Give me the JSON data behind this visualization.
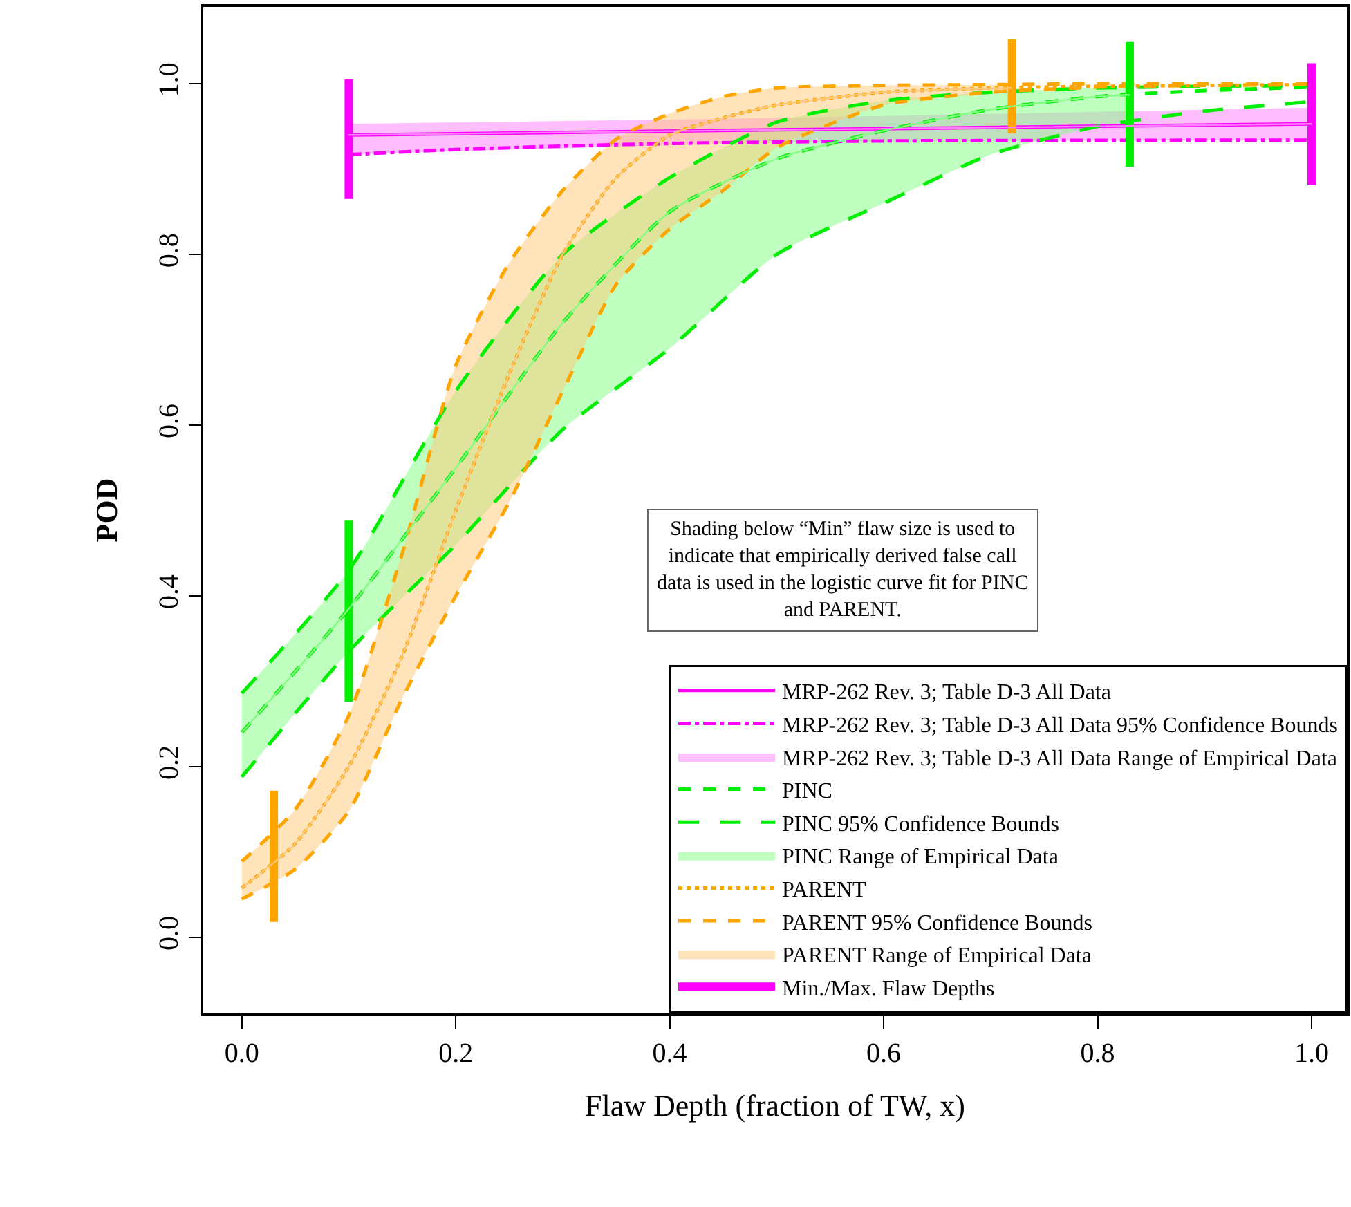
{
  "chart_data": {
    "type": "line",
    "xlabel": "Flaw Depth (fraction of TW, x)",
    "ylabel": "POD",
    "xlim": [
      -0.036,
      1.033
    ],
    "ylim": [
      -0.089,
      1.09
    ],
    "xticks": [
      {
        "value": 0,
        "label": "0.0"
      },
      {
        "value": 0.2,
        "label": "0.2"
      },
      {
        "value": 0.4,
        "label": "0.4"
      },
      {
        "value": 0.6,
        "label": "0.6"
      },
      {
        "value": 0.8,
        "label": "0.8"
      },
      {
        "value": 1,
        "label": "1.0"
      }
    ],
    "yticks": [
      {
        "value": 0,
        "label": "0.0"
      },
      {
        "value": 0.2,
        "label": "0.2"
      },
      {
        "value": 0.4,
        "label": "0.4"
      },
      {
        "value": 0.6,
        "label": "0.6"
      },
      {
        "value": 0.8,
        "label": "0.8"
      },
      {
        "value": 1,
        "label": "1.0"
      }
    ],
    "grid": false,
    "legend": "bottom right",
    "annotations": [
      "Shading below “Min” flaw size is used to\nindicate that empirically derived false call\ndata is used in the logistic curve fit for PINC\nand PARENT."
    ],
    "series": [
      {
        "name": "MRP-262 Rev. 3; Table D-3 All Data",
        "color": "#ff00ff",
        "line_style": "solid",
        "x": [
          0.1,
          0.5,
          1.0
        ],
        "values": [
          0.94,
          0.946,
          0.953
        ]
      },
      {
        "name": "MRP-262 Rev. 3; Table D-3 All Data 95% Confidence Bounds",
        "color": "#ff00ff",
        "line_style": "dashdot",
        "x": [
          0.1,
          0.2,
          0.3,
          0.4,
          0.6,
          1.0
        ],
        "values": [
          0.917,
          0.923,
          0.927,
          0.93,
          0.933,
          0.934
        ]
      },
      {
        "name": "MRP-262 Rev. 3; Table D-3 All Data Range of Empirical Data",
        "color": "#ff80ff",
        "x": [
          0.1,
          0.5,
          1.0
        ],
        "values": [
          0.94,
          0.946,
          0.953
        ],
        "lower": [
          0.917,
          0.931,
          0.934
        ],
        "upper": [
          0.953,
          0.96,
          0.972
        ]
      },
      {
        "name": "PINC",
        "color": "#00ee00",
        "line_style": "dashed",
        "x": [
          0,
          0.1,
          0.2,
          0.3,
          0.4,
          0.5,
          0.6,
          0.7,
          0.8,
          0.9,
          1.0
        ],
        "values": [
          0.24,
          0.385,
          0.55,
          0.72,
          0.85,
          0.912,
          0.945,
          0.97,
          0.985,
          0.992,
          0.996
        ]
      },
      {
        "name": "PINC 95% Confidence Bounds",
        "color": "#00ee00",
        "line_style": "longdash",
        "x": [
          0,
          0.1,
          0.2,
          0.3,
          0.4,
          0.5,
          0.6,
          0.7,
          0.8,
          0.9,
          1.0,
          null,
          0,
          0.1,
          0.2,
          0.3,
          0.4,
          0.5,
          0.6,
          0.7,
          0.8,
          0.9,
          1.0
        ],
        "values": [
          0.286,
          0.43,
          0.64,
          0.8,
          0.89,
          0.955,
          0.98,
          0.99,
          0.995,
          0.997,
          0.998,
          null,
          0.188,
          0.335,
          0.46,
          0.595,
          0.69,
          0.8,
          0.86,
          0.917,
          0.95,
          0.968,
          0.979
        ]
      },
      {
        "name": "PINC Range of Empirical Data",
        "color": "#80ff80",
        "x": [
          0,
          0.1,
          0.2,
          0.3,
          0.4,
          0.5,
          0.6,
          0.7,
          0.8,
          0.83
        ],
        "values": [
          0.24,
          0.385,
          0.55,
          0.72,
          0.85,
          0.912,
          0.945,
          0.97,
          0.985,
          0.987
        ],
        "lower": [
          0.188,
          0.335,
          0.46,
          0.595,
          0.69,
          0.8,
          0.86,
          0.917,
          0.95,
          0.955
        ],
        "upper": [
          0.286,
          0.43,
          0.64,
          0.8,
          0.89,
          0.955,
          0.98,
          0.99,
          0.995,
          0.996
        ]
      },
      {
        "name": "PARENT",
        "color": "#ffa500",
        "line_style": "dotted",
        "x": [
          0,
          0.05,
          0.1,
          0.15,
          0.2,
          0.25,
          0.3,
          0.35,
          0.4,
          0.45,
          0.5,
          0.6,
          0.7,
          0.8,
          0.9,
          1.0
        ],
        "values": [
          0.058,
          0.11,
          0.2,
          0.33,
          0.5,
          0.66,
          0.8,
          0.89,
          0.94,
          0.96,
          0.975,
          0.99,
          0.995,
          0.997,
          0.998,
          0.999
        ]
      },
      {
        "name": "PARENT 95% Confidence Bounds",
        "color": "#ffa500",
        "line_style": "dashed",
        "x": [
          0,
          0.05,
          0.1,
          0.15,
          0.2,
          0.25,
          0.3,
          0.35,
          0.4,
          0.45,
          0.5,
          0.6,
          0.7,
          0.8,
          0.9,
          1.0,
          null,
          0,
          0.05,
          0.1,
          0.15,
          0.2,
          0.25,
          0.3,
          0.35,
          0.4,
          0.45,
          0.5,
          0.6,
          0.7,
          0.8,
          0.9,
          1.0
        ],
        "values": [
          0.089,
          0.15,
          0.26,
          0.45,
          0.67,
          0.79,
          0.875,
          0.935,
          0.965,
          0.985,
          0.995,
          0.998,
          0.999,
          1.0,
          1.0,
          1.0,
          null,
          0.045,
          0.08,
          0.148,
          0.28,
          0.4,
          0.51,
          0.64,
          0.765,
          0.83,
          0.875,
          0.925,
          0.975,
          0.99,
          0.996,
          0.998,
          0.999
        ]
      },
      {
        "name": "PARENT Range of Empirical Data",
        "color": "#ffc878",
        "x": [
          0,
          0.05,
          0.1,
          0.15,
          0.2,
          0.25,
          0.3,
          0.35,
          0.4,
          0.45,
          0.5,
          0.6,
          0.72
        ],
        "values": [
          0.058,
          0.11,
          0.2,
          0.33,
          0.5,
          0.66,
          0.8,
          0.89,
          0.94,
          0.96,
          0.975,
          0.99,
          0.995
        ],
        "lower": [
          0.045,
          0.08,
          0.148,
          0.28,
          0.4,
          0.51,
          0.64,
          0.765,
          0.83,
          0.875,
          0.925,
          0.975,
          0.99
        ],
        "upper": [
          0.089,
          0.15,
          0.26,
          0.45,
          0.67,
          0.79,
          0.875,
          0.935,
          0.965,
          0.985,
          0.995,
          0.998,
          0.999
        ]
      },
      {
        "name": "Min./Max. Flaw Depths",
        "type": "line",
        "color": "#ff00ff",
        "line_style": "solid",
        "x": [
          0.1,
          0.1,
          null,
          1.0,
          1.0
        ],
        "values": [
          0.865,
          1.005,
          null,
          0.881,
          1.024
        ]
      },
      {
        "type": "line",
        "color": "#00ee00",
        "line_style": "solid",
        "x": [
          0.1,
          0.1,
          null,
          0.83,
          0.83
        ],
        "values": [
          0.276,
          0.489,
          null,
          0.903,
          1.049
        ]
      },
      {
        "type": "line",
        "color": "#ffa500",
        "line_style": "solid",
        "x": [
          0.03,
          0.03,
          null,
          0.72,
          0.72
        ],
        "values": [
          0.018,
          0.172,
          null,
          0.942,
          1.052
        ]
      }
    ]
  }
}
